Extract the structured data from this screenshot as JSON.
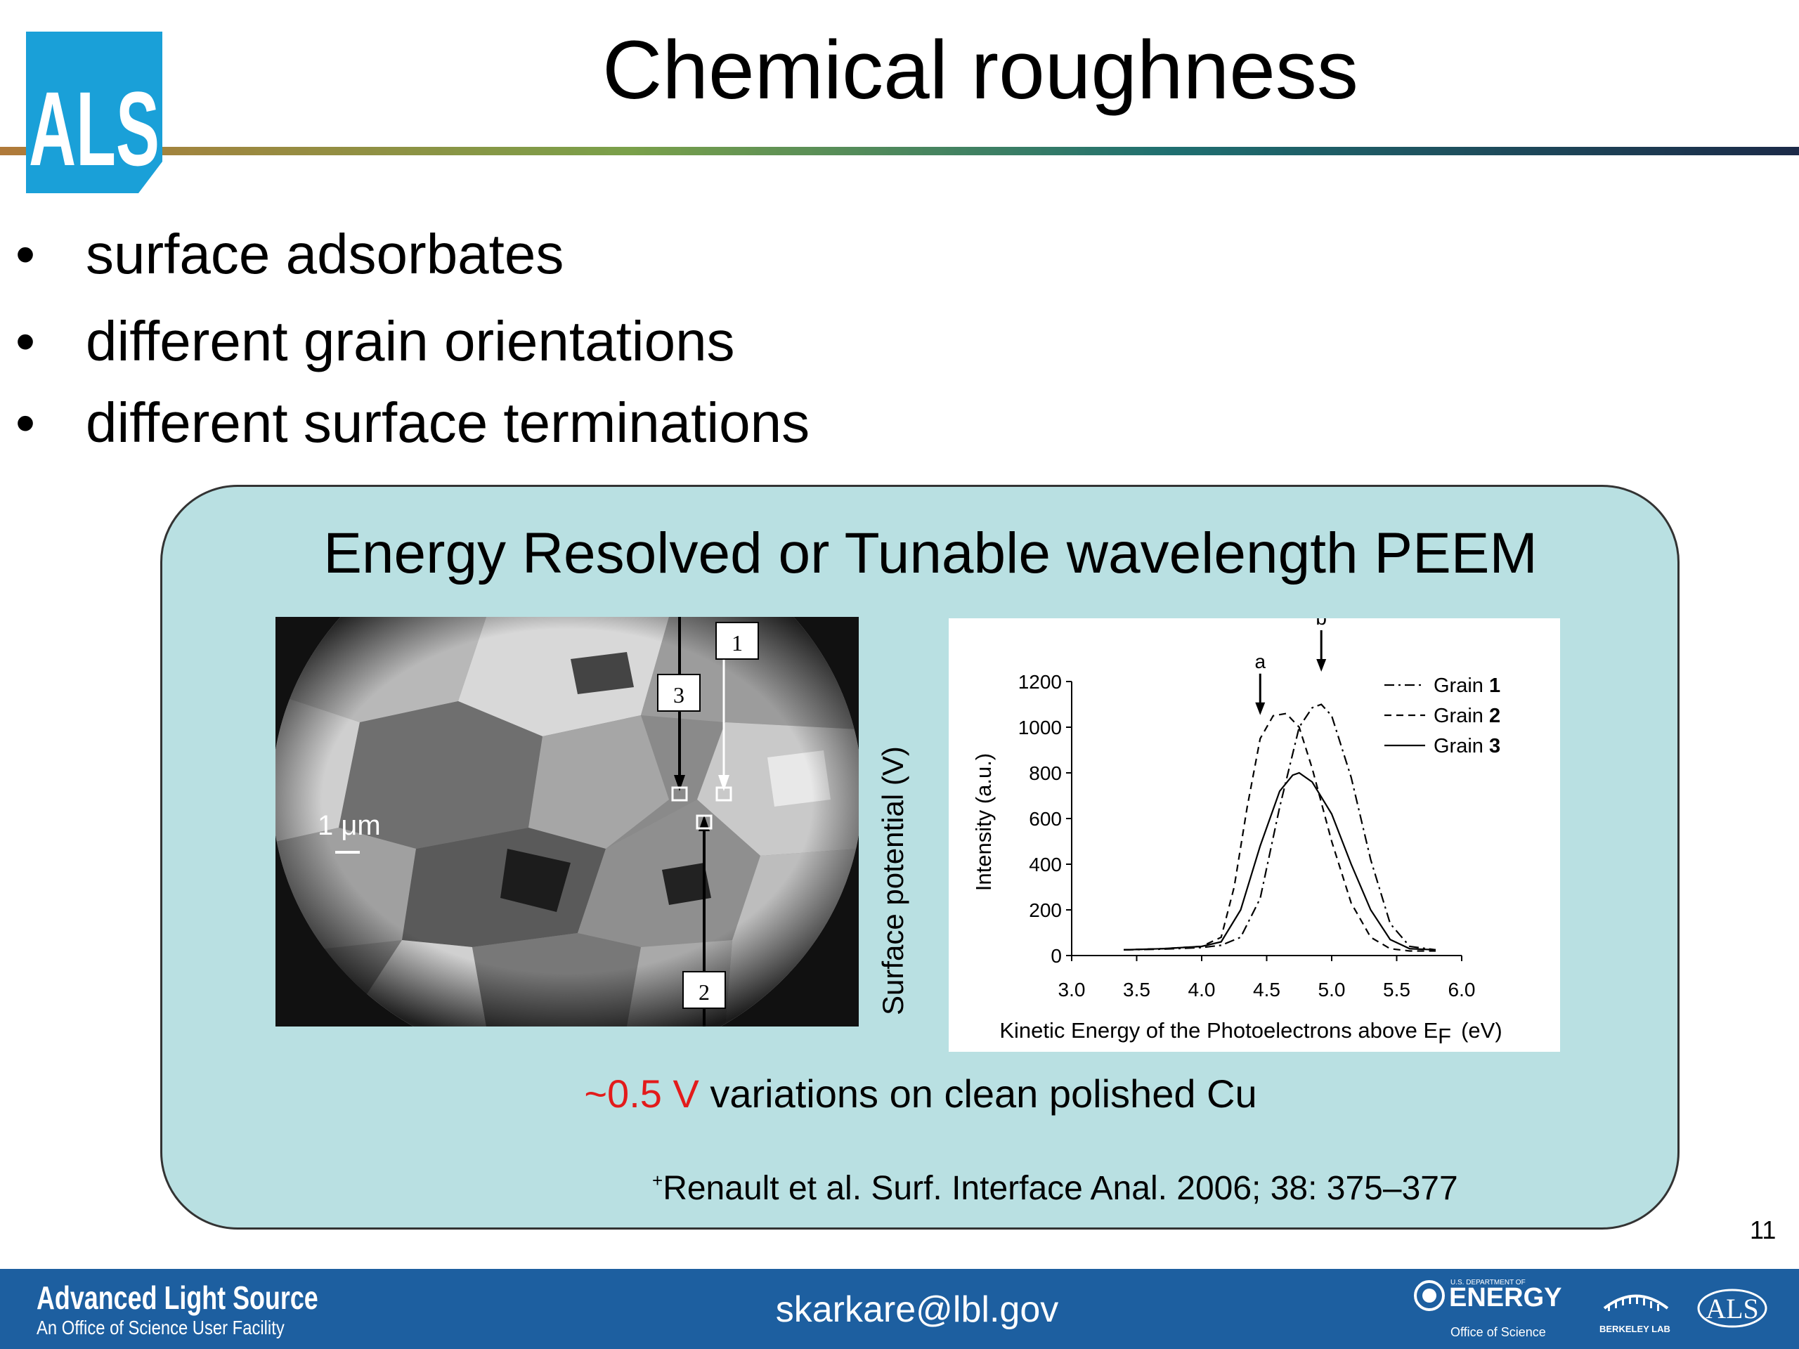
{
  "header": {
    "logo_text": "ALS",
    "title": "Chemical roughness"
  },
  "bullets": [
    "surface adsorbates",
    "different grain orientations",
    "different surface terminations"
  ],
  "bullet_marker": "•",
  "panel": {
    "title": "Energy Resolved or Tunable wavelength PEEM",
    "image": {
      "scale_label": "1 μm",
      "markers": [
        "1",
        "2",
        "3"
      ]
    },
    "side_axis_label": "Surface potential (V)",
    "variation_highlight": "~0.5 V",
    "variation_text": " variations on clean polished Cu",
    "citation_mark": "+",
    "citation": "Renault et al. Surf. Interface Anal. 2006; 38: 375–377"
  },
  "chart_data": {
    "type": "line",
    "xlabel": "Kinetic Energy of the Photoelectrons above E",
    "xlabel_sub": "F",
    "xlabel_unit": "(eV)",
    "ylabel": "Intensity (a.u.)",
    "xlim": [
      3.0,
      6.0
    ],
    "ylim": [
      0,
      1200
    ],
    "xticks": [
      "3.0",
      "3.5",
      "4.0",
      "4.5",
      "5.0",
      "5.5",
      "6.0"
    ],
    "yticks": [
      "0",
      "200",
      "400",
      "600",
      "800",
      "1000",
      "1200"
    ],
    "annotations": [
      {
        "label": "a",
        "x": 4.45,
        "y": 1050
      },
      {
        "label": "b",
        "x": 4.92,
        "y": 1240
      }
    ],
    "legend_position": "top-right",
    "series": [
      {
        "name": "Grain",
        "num": "1",
        "dash": "dashdot",
        "x": [
          3.4,
          3.7,
          4.0,
          4.15,
          4.3,
          4.45,
          4.6,
          4.75,
          4.85,
          4.92,
          5.0,
          5.15,
          5.3,
          5.45,
          5.6,
          5.8
        ],
        "y": [
          25,
          28,
          35,
          45,
          80,
          250,
          650,
          1000,
          1085,
          1100,
          1050,
          780,
          420,
          140,
          40,
          25
        ]
      },
      {
        "name": "Grain",
        "num": "2",
        "dash": "dash",
        "x": [
          3.4,
          3.7,
          4.0,
          4.15,
          4.25,
          4.35,
          4.45,
          4.55,
          4.65,
          4.75,
          4.85,
          5.0,
          5.15,
          5.3,
          5.45,
          5.6,
          5.8
        ],
        "y": [
          25,
          30,
          40,
          80,
          300,
          650,
          950,
          1050,
          1060,
          1000,
          820,
          500,
          230,
          80,
          30,
          20,
          20
        ]
      },
      {
        "name": "Grain",
        "num": "3",
        "dash": "solid",
        "x": [
          3.4,
          3.7,
          4.0,
          4.15,
          4.3,
          4.45,
          4.6,
          4.7,
          4.75,
          4.85,
          5.0,
          5.15,
          5.3,
          5.45,
          5.6,
          5.8
        ],
        "y": [
          25,
          30,
          40,
          60,
          200,
          480,
          720,
          790,
          800,
          760,
          620,
          400,
          200,
          70,
          30,
          25
        ]
      }
    ]
  },
  "page_number": "11",
  "footer": {
    "name": "Advanced Light Source",
    "subtitle": "An Office of Science User Facility",
    "email": "skarkare@lbl.gov",
    "doe_small": "U.S. DEPARTMENT OF",
    "doe_main": "ENERGY",
    "doe_sub": "Office of Science",
    "berkeley": "BERKELEY LAB",
    "als_mark": "ALS"
  },
  "colors": {
    "panel_bg": "#b9e0e2",
    "footer_bg": "#1d5fa0",
    "logo_blue": "#1aa0d8",
    "highlight_red": "#e31b1b"
  }
}
